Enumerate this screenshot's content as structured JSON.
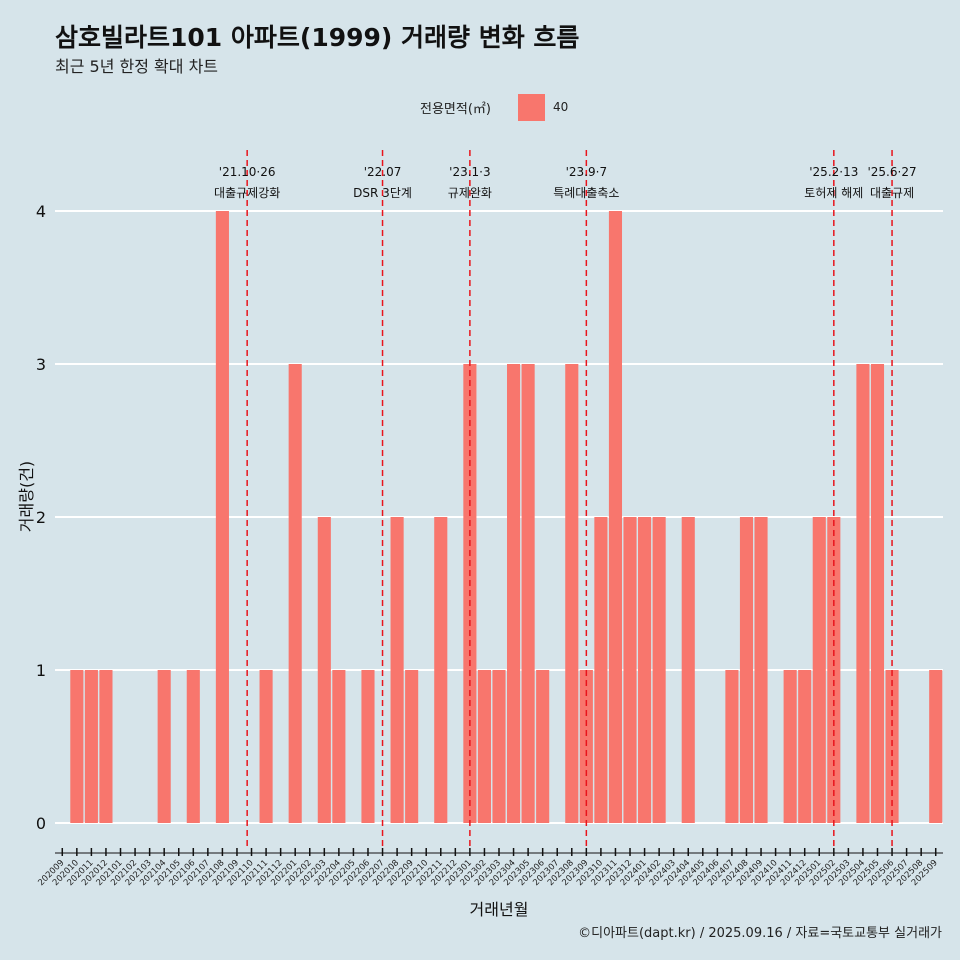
{
  "title": "삼호빌라트101 아파트(1999) 거래량 변화 흐름",
  "subtitle": "최근 5년 한정 확대 차트",
  "caption": "©디아파트(dapt.kr) / 2025.09.16 / 자료=국토교통부 실거래가",
  "colors": {
    "bar": "#f8766d",
    "background": "#d6e4ea",
    "grid": "#ffffff",
    "event_line": "#e8141c"
  },
  "chart_data": {
    "type": "bar",
    "xlabel": "거래년월",
    "ylabel": "거래량(건)",
    "ylim": [
      0,
      4
    ],
    "yticks": [
      0,
      1,
      2,
      3,
      4
    ],
    "legend": {
      "title": "전용면적(㎡)",
      "entries": [
        "40"
      ],
      "position": "top"
    },
    "categories": [
      "202009",
      "202010",
      "202011",
      "202012",
      "202101",
      "202102",
      "202103",
      "202104",
      "202105",
      "202106",
      "202107",
      "202108",
      "202109",
      "202110",
      "202111",
      "202112",
      "202201",
      "202202",
      "202203",
      "202204",
      "202205",
      "202206",
      "202207",
      "202208",
      "202209",
      "202210",
      "202211",
      "202212",
      "202301",
      "202302",
      "202303",
      "202304",
      "202305",
      "202306",
      "202307",
      "202308",
      "202309",
      "202310",
      "202311",
      "202312",
      "202401",
      "202402",
      "202403",
      "202404",
      "202405",
      "202406",
      "202407",
      "202408",
      "202409",
      "202410",
      "202411",
      "202412",
      "202501",
      "202502",
      "202503",
      "202504",
      "202505",
      "202506",
      "202507",
      "202508",
      "202509"
    ],
    "series": [
      {
        "name": "40",
        "values": [
          0,
          1,
          1,
          1,
          0,
          0,
          0,
          1,
          0,
          1,
          0,
          4,
          0,
          0,
          1,
          0,
          3,
          0,
          2,
          1,
          0,
          1,
          0,
          2,
          1,
          0,
          2,
          0,
          3,
          1,
          1,
          3,
          3,
          1,
          0,
          3,
          1,
          2,
          4,
          2,
          2,
          2,
          0,
          2,
          0,
          0,
          1,
          2,
          2,
          0,
          1,
          1,
          2,
          2,
          0,
          3,
          3,
          1,
          0,
          0,
          1
        ]
      }
    ],
    "events": [
      {
        "date_label": "'21.10·26",
        "label": "대출규제강화",
        "month": "202110",
        "offset": -0.3
      },
      {
        "date_label": "'22.07",
        "label": "DSR 3단계",
        "month": "202207",
        "offset": 0.0
      },
      {
        "date_label": "'23.1·3",
        "label": "규제완화",
        "month": "202301",
        "offset": 0.0
      },
      {
        "date_label": "'23.9·7",
        "label": "특례대출축소",
        "month": "202309",
        "offset": 0.0
      },
      {
        "date_label": "'25.2·13",
        "label": "토허제 해제",
        "month": "202502",
        "offset": 0.0
      },
      {
        "date_label": "'25.6·27",
        "label": "대출규제",
        "month": "202506",
        "offset": 0.0
      }
    ]
  }
}
